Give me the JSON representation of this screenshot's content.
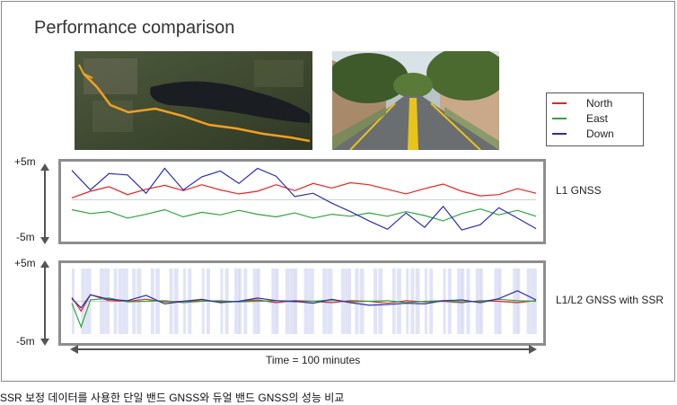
{
  "title": "Performance comparison",
  "caption": "SSR 보정 데이터를 사용한 단일 밴드 GNSS와 듀얼 밴드 GNSS의 성능 비교",
  "legend": [
    {
      "label": "North",
      "color": "#e8231f"
    },
    {
      "label": "East",
      "color": "#2aa83a"
    },
    {
      "label": "Down",
      "color": "#2b2fb0"
    }
  ],
  "panels": [
    {
      "label": "L1 GNSS",
      "top_scale": "+5m",
      "bottom_scale": "-5m"
    },
    {
      "label": "L1/L2 GNSS with SSR",
      "top_scale": "+5m",
      "bottom_scale": "-5m"
    }
  ],
  "time_axis_label": "Time = 100 minutes",
  "photos": [
    {
      "icon": "satellite-map-photo"
    },
    {
      "icon": "street-view-photo"
    }
  ],
  "chart_data": [
    {
      "type": "line",
      "title": "",
      "panel_label": "L1 GNSS",
      "xlabel": "Time = 100 minutes",
      "ylabel": "",
      "ylim": [
        -5,
        5
      ],
      "xlim": [
        0,
        100
      ],
      "series": [
        {
          "name": "North",
          "color": "#e8231f",
          "x": [
            0,
            4,
            8,
            12,
            16,
            20,
            24,
            28,
            32,
            36,
            40,
            44,
            48,
            52,
            56,
            60,
            64,
            68,
            72,
            76,
            80,
            84,
            88,
            92,
            96,
            100
          ],
          "y": [
            0.3,
            1.3,
            2.0,
            0.8,
            1.6,
            2.2,
            1.4,
            2.3,
            1.5,
            0.9,
            1.3,
            2.3,
            1.4,
            2.5,
            1.8,
            2.6,
            2.3,
            1.6,
            0.9,
            1.7,
            2.4,
            1.3,
            0.6,
            0.8,
            1.7,
            1.0
          ]
        },
        {
          "name": "East",
          "color": "#2aa83a",
          "x": [
            0,
            4,
            8,
            12,
            16,
            20,
            24,
            28,
            32,
            36,
            40,
            44,
            48,
            52,
            56,
            60,
            64,
            68,
            72,
            76,
            80,
            84,
            88,
            92,
            96,
            100
          ],
          "y": [
            -1.5,
            -2.1,
            -1.8,
            -2.8,
            -2.2,
            -1.5,
            -2.6,
            -1.9,
            -2.3,
            -1.6,
            -2.2,
            -2.6,
            -2.0,
            -2.8,
            -2.2,
            -2.5,
            -2.0,
            -2.5,
            -1.8,
            -2.4,
            -3.2,
            -2.1,
            -1.4,
            -2.3,
            -1.6,
            -2.5
          ]
        },
        {
          "name": "Down",
          "color": "#2b2fb0",
          "x": [
            0,
            4,
            8,
            12,
            16,
            20,
            24,
            28,
            32,
            36,
            40,
            44,
            48,
            52,
            56,
            60,
            64,
            68,
            72,
            76,
            80,
            84,
            88,
            92,
            96,
            100
          ],
          "y": [
            4.5,
            1.5,
            4.0,
            3.8,
            1.0,
            4.8,
            1.5,
            3.5,
            4.4,
            2.5,
            4.8,
            3.6,
            0.5,
            1.0,
            -0.5,
            -1.8,
            -3.2,
            -4.5,
            -2.0,
            -4.2,
            -1.0,
            -4.6,
            -3.8,
            -1.2,
            -2.8,
            -4.4
          ]
        }
      ]
    },
    {
      "type": "line",
      "title": "",
      "panel_label": "L1/L2 GNSS with SSR",
      "xlabel": "Time = 100 minutes",
      "ylabel": "",
      "ylim": [
        -5,
        5
      ],
      "xlim": [
        0,
        100
      ],
      "series": [
        {
          "name": "North",
          "color": "#e8231f",
          "x": [
            0,
            2,
            4,
            8,
            12,
            16,
            20,
            24,
            28,
            32,
            36,
            40,
            44,
            48,
            52,
            56,
            60,
            64,
            68,
            72,
            76,
            80,
            84,
            88,
            92,
            96,
            100
          ],
          "y": [
            0.6,
            -1.5,
            1.0,
            0.1,
            0.0,
            0.3,
            -0.1,
            0.0,
            0.1,
            -0.1,
            0.0,
            0.2,
            -0.2,
            0.1,
            0.0,
            -0.2,
            0.1,
            0.0,
            -0.3,
            0.1,
            -0.1,
            0.0,
            -0.2,
            0.1,
            0.0,
            -0.2,
            0.1
          ]
        },
        {
          "name": "East",
          "color": "#2aa83a",
          "x": [
            0,
            2,
            4,
            8,
            12,
            16,
            20,
            24,
            28,
            32,
            36,
            40,
            44,
            48,
            52,
            56,
            60,
            64,
            68,
            72,
            76,
            80,
            84,
            88,
            92,
            96,
            100
          ],
          "y": [
            -0.3,
            -3.9,
            0.2,
            0.5,
            -0.1,
            0.0,
            0.1,
            -0.2,
            0.0,
            0.1,
            -0.1,
            0.0,
            0.1,
            -0.1,
            0.0,
            0.2,
            -0.1,
            0.0,
            0.1,
            -0.2,
            0.0,
            0.1,
            -0.1,
            0.0,
            0.3,
            0.1,
            0.0
          ]
        },
        {
          "name": "Down",
          "color": "#2b2fb0",
          "x": [
            0,
            2,
            4,
            8,
            12,
            16,
            20,
            24,
            28,
            32,
            36,
            40,
            44,
            48,
            52,
            56,
            60,
            64,
            68,
            72,
            76,
            80,
            84,
            88,
            92,
            96,
            100
          ],
          "y": [
            0.4,
            -1.0,
            1.0,
            0.3,
            0.1,
            0.9,
            -0.4,
            0.0,
            0.3,
            -0.2,
            0.0,
            0.5,
            0.1,
            0.0,
            -0.3,
            0.3,
            -0.2,
            -0.6,
            -0.5,
            -0.3,
            -0.4,
            0.1,
            0.2,
            -0.2,
            0.4,
            1.6,
            0.2
          ]
        }
      ]
    }
  ]
}
